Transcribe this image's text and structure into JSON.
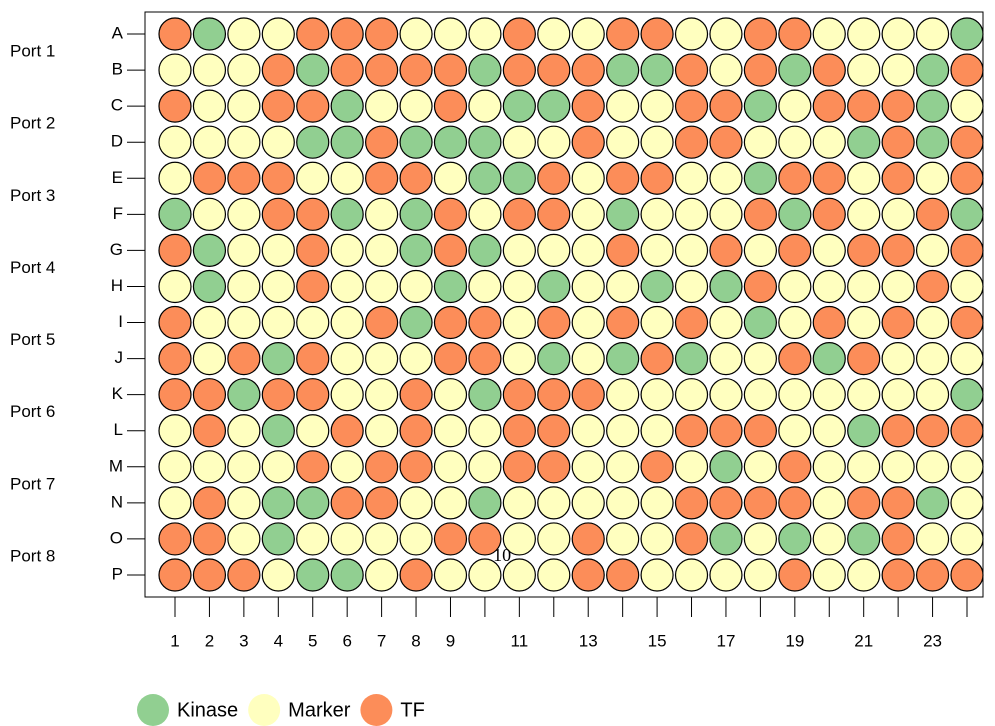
{
  "chart_data": {
    "type": "plate",
    "rows": [
      "A",
      "B",
      "C",
      "D",
      "E",
      "F",
      "G",
      "H",
      "I",
      "J",
      "K",
      "L",
      "M",
      "N",
      "O",
      "P"
    ],
    "columns": [
      1,
      2,
      3,
      4,
      5,
      6,
      7,
      8,
      9,
      null,
      11,
      null,
      13,
      null,
      15,
      null,
      17,
      null,
      19,
      null,
      21,
      null,
      23,
      null
    ],
    "groups": [
      "Port 1",
      "Port 2",
      "Port 3",
      "Port 4",
      "Port 5",
      "Port 6",
      "Port 7",
      "Port 8"
    ],
    "annotation": "10",
    "series": [
      {
        "name": "Kinase",
        "color": "#91cf91"
      },
      {
        "name": "Marker",
        "color": "#ffffbf"
      },
      {
        "name": "TF",
        "color": "#fc8d59"
      }
    ],
    "cells": [
      [
        "TF",
        "Kinase",
        "Marker",
        "Marker",
        "TF",
        "TF",
        "TF",
        "Marker",
        "Marker",
        "Marker",
        "TF",
        "Marker",
        "Marker",
        "TF",
        "TF",
        "Marker",
        "Marker",
        "TF",
        "TF",
        "Marker",
        "Marker",
        "Marker",
        "Marker",
        "Kinase"
      ],
      [
        "Marker",
        "Marker",
        "Marker",
        "TF",
        "Kinase",
        "TF",
        "TF",
        "TF",
        "TF",
        "Kinase",
        "TF",
        "TF",
        "TF",
        "Kinase",
        "Kinase",
        "TF",
        "Marker",
        "TF",
        "Kinase",
        "TF",
        "Marker",
        "Marker",
        "Kinase",
        "TF"
      ],
      [
        "TF",
        "Marker",
        "Marker",
        "TF",
        "TF",
        "Kinase",
        "Marker",
        "Marker",
        "TF",
        "Marker",
        "Kinase",
        "Kinase",
        "TF",
        "Marker",
        "Marker",
        "TF",
        "TF",
        "Kinase",
        "Marker",
        "TF",
        "TF",
        "TF",
        "Kinase",
        "Marker"
      ],
      [
        "Marker",
        "Marker",
        "Marker",
        "Marker",
        "Kinase",
        "Kinase",
        "TF",
        "Kinase",
        "Kinase",
        "Kinase",
        "Marker",
        "Marker",
        "TF",
        "Marker",
        "Marker",
        "TF",
        "TF",
        "Marker",
        "Marker",
        "Marker",
        "Kinase",
        "TF",
        "Kinase",
        "TF"
      ],
      [
        "Marker",
        "TF",
        "TF",
        "TF",
        "Marker",
        "Marker",
        "TF",
        "TF",
        "Marker",
        "Kinase",
        "Kinase",
        "TF",
        "Marker",
        "TF",
        "TF",
        "Marker",
        "Marker",
        "Kinase",
        "TF",
        "TF",
        "Marker",
        "TF",
        "Marker",
        "TF"
      ],
      [
        "Kinase",
        "Marker",
        "Marker",
        "TF",
        "TF",
        "Kinase",
        "Marker",
        "Kinase",
        "TF",
        "Marker",
        "TF",
        "TF",
        "Marker",
        "Kinase",
        "Marker",
        "Marker",
        "Marker",
        "TF",
        "Kinase",
        "TF",
        "Marker",
        "Marker",
        "TF",
        "Kinase"
      ],
      [
        "TF",
        "Kinase",
        "Marker",
        "Marker",
        "TF",
        "Marker",
        "Marker",
        "Kinase",
        "TF",
        "Kinase",
        "Marker",
        "Marker",
        "Marker",
        "TF",
        "Marker",
        "Marker",
        "TF",
        "Marker",
        "TF",
        "Marker",
        "TF",
        "TF",
        "Marker",
        "TF"
      ],
      [
        "Marker",
        "Kinase",
        "Marker",
        "Marker",
        "TF",
        "Marker",
        "Marker",
        "Marker",
        "Kinase",
        "Marker",
        "Marker",
        "Kinase",
        "Marker",
        "Marker",
        "Kinase",
        "Marker",
        "Kinase",
        "TF",
        "Marker",
        "Marker",
        "Marker",
        "Marker",
        "TF",
        "Marker"
      ],
      [
        "TF",
        "Marker",
        "Marker",
        "Marker",
        "Marker",
        "Marker",
        "TF",
        "Kinase",
        "TF",
        "TF",
        "Marker",
        "TF",
        "Marker",
        "TF",
        "Marker",
        "TF",
        "Marker",
        "Kinase",
        "Marker",
        "TF",
        "Marker",
        "TF",
        "Marker",
        "TF"
      ],
      [
        "TF",
        "Marker",
        "TF",
        "Kinase",
        "TF",
        "Marker",
        "Marker",
        "Marker",
        "TF",
        "TF",
        "Marker",
        "Kinase",
        "Marker",
        "Kinase",
        "TF",
        "Kinase",
        "Marker",
        "Marker",
        "TF",
        "Kinase",
        "TF",
        "Marker",
        "Marker",
        "Marker"
      ],
      [
        "TF",
        "TF",
        "Kinase",
        "TF",
        "TF",
        "Marker",
        "Marker",
        "TF",
        "Marker",
        "Kinase",
        "TF",
        "TF",
        "TF",
        "Marker",
        "Marker",
        "Marker",
        "Marker",
        "Marker",
        "Marker",
        "Marker",
        "Marker",
        "Marker",
        "Marker",
        "Kinase"
      ],
      [
        "Marker",
        "TF",
        "Marker",
        "Kinase",
        "Marker",
        "TF",
        "Marker",
        "TF",
        "Marker",
        "Marker",
        "TF",
        "TF",
        "Marker",
        "Marker",
        "Marker",
        "TF",
        "TF",
        "TF",
        "Marker",
        "Marker",
        "Kinase",
        "TF",
        "TF",
        "TF"
      ],
      [
        "Marker",
        "Marker",
        "Marker",
        "Marker",
        "TF",
        "Marker",
        "TF",
        "TF",
        "Marker",
        "Marker",
        "TF",
        "TF",
        "Marker",
        "Marker",
        "TF",
        "Marker",
        "Kinase",
        "Marker",
        "TF",
        "Marker",
        "Marker",
        "Marker",
        "Marker",
        "Marker"
      ],
      [
        "Marker",
        "TF",
        "Marker",
        "Kinase",
        "Kinase",
        "TF",
        "TF",
        "Marker",
        "Marker",
        "Kinase",
        "Marker",
        "Marker",
        "Marker",
        "Marker",
        "Marker",
        "TF",
        "TF",
        "TF",
        "TF",
        "Marker",
        "TF",
        "TF",
        "Kinase",
        "Marker"
      ],
      [
        "TF",
        "TF",
        "Marker",
        "Kinase",
        "Marker",
        "Marker",
        "Marker",
        "Marker",
        "TF",
        "TF",
        "Marker",
        "Marker",
        "TF",
        "Marker",
        "Marker",
        "TF",
        "Kinase",
        "Marker",
        "Kinase",
        "Marker",
        "Kinase",
        "TF",
        "Marker",
        "Marker"
      ],
      [
        "TF",
        "TF",
        "TF",
        "Marker",
        "Kinase",
        "Kinase",
        "Marker",
        "TF",
        "Marker",
        "Marker",
        "Marker",
        "Marker",
        "TF",
        "TF",
        "Marker",
        "Marker",
        "Marker",
        "Marker",
        "TF",
        "Marker",
        "Marker",
        "TF",
        "TF",
        "TF"
      ]
    ]
  }
}
